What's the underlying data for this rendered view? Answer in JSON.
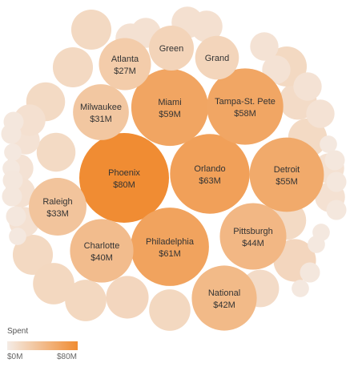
{
  "chart_data": {
    "type": "bubble",
    "title": "",
    "color_measure": "Spent",
    "units": "USD (millions)",
    "legend": {
      "title": "Spent",
      "min_label": "$0M",
      "max_label": "$80M",
      "position": "bottom-left"
    },
    "colors": {
      "low": "#f4ece6",
      "high": "#f08c33",
      "label": "#333333"
    },
    "color_range": [
      0,
      80
    ],
    "labeled_bubbles": [
      {
        "name": "Phoenix",
        "label": "$80M",
        "value": 80
      },
      {
        "name": "Philadelphia",
        "label": "$61M",
        "value": 61
      },
      {
        "name": "Orlando",
        "label": "$63M",
        "value": 63
      },
      {
        "name": "Miami",
        "label": "$59M",
        "value": 59
      },
      {
        "name": "Tampa-St. Pete",
        "label": "$58M",
        "value": 58
      },
      {
        "name": "Detroit",
        "label": "$55M",
        "value": 55
      },
      {
        "name": "Pittsburgh",
        "label": "$44M",
        "value": 44
      },
      {
        "name": "National",
        "label": "$42M",
        "value": 42
      },
      {
        "name": "Charlotte",
        "label": "$40M",
        "value": 40
      },
      {
        "name": "Raleigh",
        "label": "$33M",
        "value": 33
      },
      {
        "name": "Milwaukee",
        "label": "$31M",
        "value": 31
      },
      {
        "name": "Atlanta",
        "label": "$27M",
        "value": 27
      },
      {
        "name": "Green",
        "label": "",
        "value": 20
      },
      {
        "name": "Grand",
        "label": "",
        "value": 19
      }
    ],
    "unlabeled_bubble_values": [
      16,
      16,
      15,
      15,
      16,
      17,
      17,
      18,
      17,
      18,
      15,
      14,
      15,
      14,
      16,
      9,
      9,
      10,
      10,
      8,
      8,
      8,
      8,
      9,
      9,
      8,
      8,
      9,
      9,
      10,
      4,
      4,
      3,
      3,
      4,
      4,
      4,
      3,
      3,
      4,
      4,
      4,
      3,
      3,
      4,
      3
    ]
  }
}
